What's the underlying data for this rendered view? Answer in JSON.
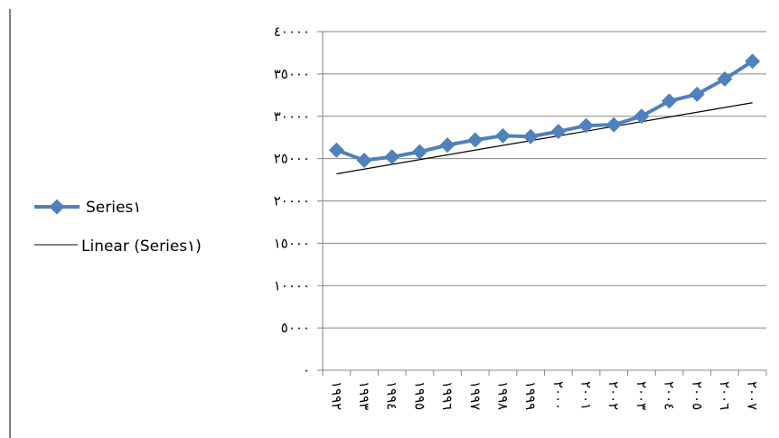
{
  "chart_data": {
    "type": "line",
    "title": "",
    "xlabel": "",
    "ylabel": "",
    "ylim": [
      0,
      40000
    ],
    "y_ticks": [
      0,
      5000,
      10000,
      15000,
      20000,
      25000,
      30000,
      35000,
      40000
    ],
    "y_tick_labels": [
      "٠",
      "٥٠٠٠",
      "١٠٠٠٠",
      "١٥٠٠٠",
      "٢٠٠٠٠",
      "٢٥٠٠٠",
      "٣٠٠٠٠",
      "٣٥٠٠٠",
      "٤٠٠٠٠"
    ],
    "categories": [
      "١٩٩٢",
      "١٩٩٣",
      "١٩٩٤",
      "١٩٩٥",
      "١٩٩٦",
      "١٩٩٧",
      "١٩٩٨",
      "١٩٩٩",
      "٢٠٠٠",
      "٢٠٠١",
      "٢٠٠٢",
      "٢٠٠٣",
      "٢٠٠٤",
      "٢٠٠٥",
      "٢٠٠٦",
      "٢٠٠٧"
    ],
    "grid": "horizontal",
    "legend_position": "left",
    "series": [
      {
        "name": "Series١",
        "legend_label": "Series١",
        "color": "#4F81BD",
        "marker": "diamond",
        "values": [
          26000,
          24800,
          25200,
          25800,
          26600,
          27200,
          27700,
          27600,
          28200,
          28900,
          29000,
          30000,
          31800,
          32600,
          34400,
          36500
        ]
      },
      {
        "name": "Linear (Series١)",
        "legend_label": "Linear (Series١)",
        "color": "#000000",
        "type": "trendline",
        "values": [
          23200,
          23760,
          24320,
          24880,
          25440,
          26000,
          26560,
          27120,
          27680,
          28240,
          28800,
          29360,
          29920,
          30480,
          31040,
          31600
        ]
      }
    ]
  }
}
